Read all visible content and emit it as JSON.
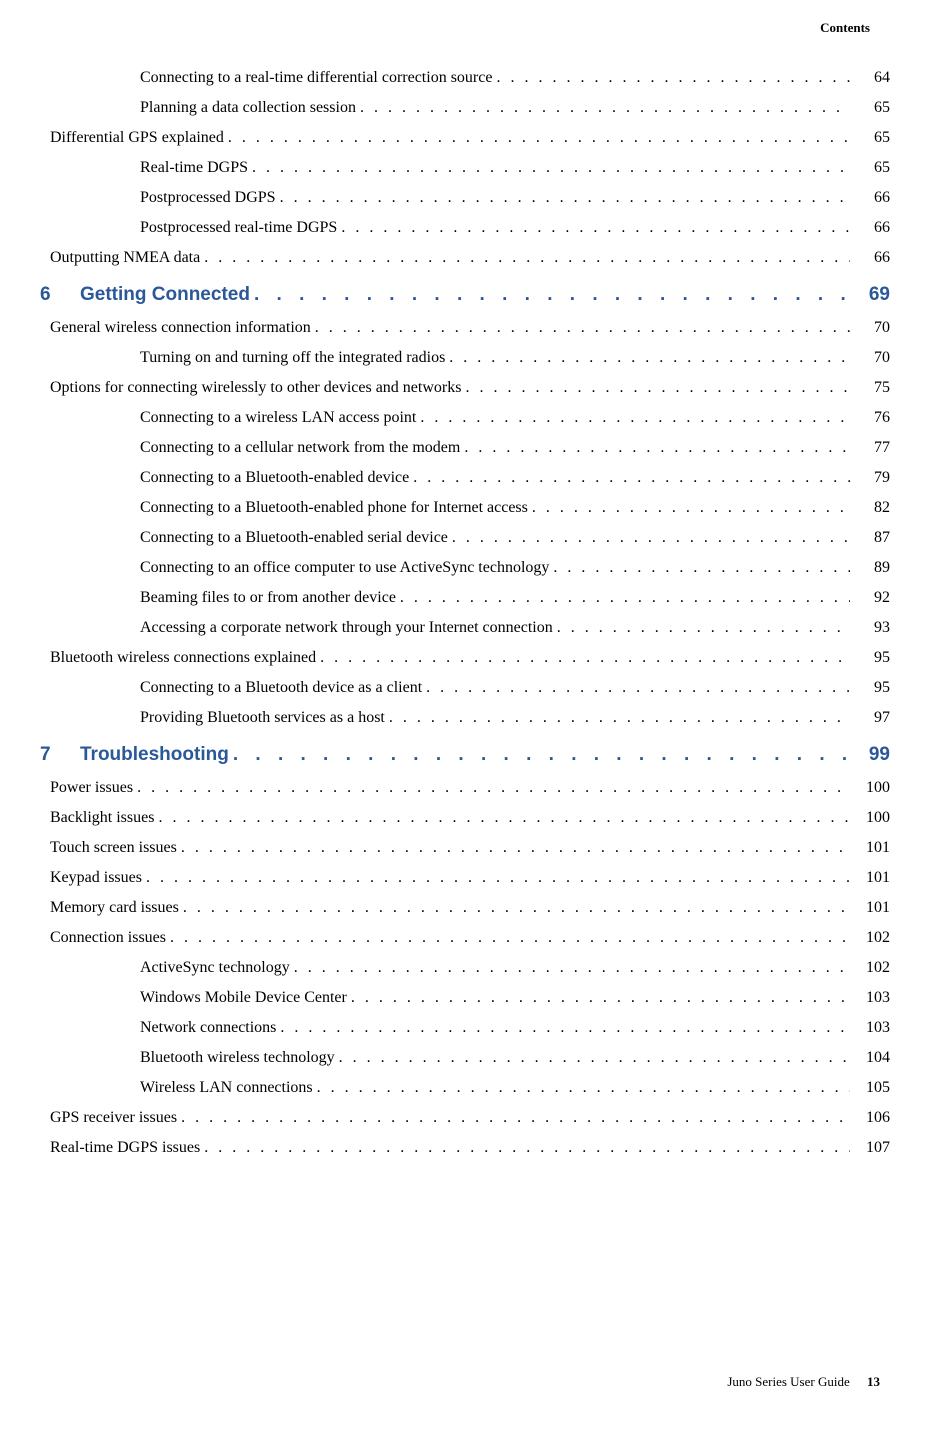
{
  "header": {
    "right_label": "Contents"
  },
  "entries": [
    {
      "type": "sub",
      "level": 1,
      "title": "Connecting to a real-time differential correction source",
      "page": "64"
    },
    {
      "type": "sub",
      "level": 1,
      "title": "Planning a data collection session",
      "page": "65"
    },
    {
      "type": "sub",
      "level": 0,
      "title": "Differential GPS explained",
      "page": "65"
    },
    {
      "type": "sub",
      "level": 1,
      "title": "Real-time DGPS",
      "page": "65"
    },
    {
      "type": "sub",
      "level": 1,
      "title": "Postprocessed DGPS",
      "page": "66"
    },
    {
      "type": "sub",
      "level": 1,
      "title": "Postprocessed real-time DGPS",
      "page": "66"
    },
    {
      "type": "sub",
      "level": 0,
      "title": "Outputting NMEA data",
      "page": "66"
    },
    {
      "type": "chapter",
      "num": "6",
      "title": "Getting Connected",
      "page": "69"
    },
    {
      "type": "sub",
      "level": 0,
      "title": "General wireless connection information",
      "page": "70"
    },
    {
      "type": "sub",
      "level": 1,
      "title": "Turning on and turning off the integrated radios",
      "page": "70"
    },
    {
      "type": "sub",
      "level": 0,
      "title": "Options for connecting wirelessly to other devices and networks",
      "page": "75"
    },
    {
      "type": "sub",
      "level": 1,
      "title": "Connecting to a wireless LAN access point",
      "page": "76"
    },
    {
      "type": "sub",
      "level": 1,
      "title": "Connecting to a cellular network from the modem",
      "page": "77"
    },
    {
      "type": "sub",
      "level": 1,
      "title": "Connecting to a Bluetooth-enabled device",
      "page": "79"
    },
    {
      "type": "sub",
      "level": 1,
      "title": "Connecting to a Bluetooth-enabled phone for Internet access",
      "page": "82"
    },
    {
      "type": "sub",
      "level": 1,
      "title": "Connecting to a Bluetooth-enabled serial device",
      "page": "87"
    },
    {
      "type": "sub",
      "level": 1,
      "title": "Connecting to an office computer to use ActiveSync technology",
      "page": "89"
    },
    {
      "type": "sub",
      "level": 1,
      "title": "Beaming files to or from another device",
      "page": "92"
    },
    {
      "type": "sub",
      "level": 1,
      "title": "Accessing a corporate network through your Internet connection",
      "page": "93"
    },
    {
      "type": "sub",
      "level": 0,
      "title": "Bluetooth wireless connections explained",
      "page": "95"
    },
    {
      "type": "sub",
      "level": 1,
      "title": "Connecting to a Bluetooth device as a client",
      "page": "95"
    },
    {
      "type": "sub",
      "level": 1,
      "title": "Providing Bluetooth services as a host",
      "page": "97"
    },
    {
      "type": "chapter",
      "num": "7",
      "title": "Troubleshooting",
      "page": "99"
    },
    {
      "type": "sub",
      "level": 0,
      "title": "Power issues",
      "page": "100"
    },
    {
      "type": "sub",
      "level": 0,
      "title": "Backlight issues",
      "page": "100"
    },
    {
      "type": "sub",
      "level": 0,
      "title": "Touch screen issues",
      "page": "101"
    },
    {
      "type": "sub",
      "level": 0,
      "title": "Keypad issues",
      "page": "101"
    },
    {
      "type": "sub",
      "level": 0,
      "title": "Memory card issues",
      "page": "101"
    },
    {
      "type": "sub",
      "level": 0,
      "title": "Connection issues",
      "page": "102"
    },
    {
      "type": "sub",
      "level": 1,
      "title": "ActiveSync technology",
      "page": "102"
    },
    {
      "type": "sub",
      "level": 1,
      "title": "Windows Mobile Device Center",
      "page": "103"
    },
    {
      "type": "sub",
      "level": 1,
      "title": "Network connections",
      "page": "103"
    },
    {
      "type": "sub",
      "level": 1,
      "title": "Bluetooth wireless technology",
      "page": "104"
    },
    {
      "type": "sub",
      "level": 1,
      "title": "Wireless LAN connections",
      "page": "105"
    },
    {
      "type": "sub",
      "level": 0,
      "title": "GPS receiver issues",
      "page": "106"
    },
    {
      "type": "sub",
      "level": 0,
      "title": "Real-time DGPS issues",
      "page": "107"
    }
  ],
  "footer": {
    "guide_title": "Juno Series User Guide",
    "page_number": "13"
  },
  "dots_string": ". . . . . . . . . . . . . . . . . . . . . . . . . . . . . . . . . . . . . . . . . . . . . . . . . . . . . . . . . . . . . . . . . . . . . . . . . . . . . . . . . . . . . . . . . . . . . . . . . . . ."
}
